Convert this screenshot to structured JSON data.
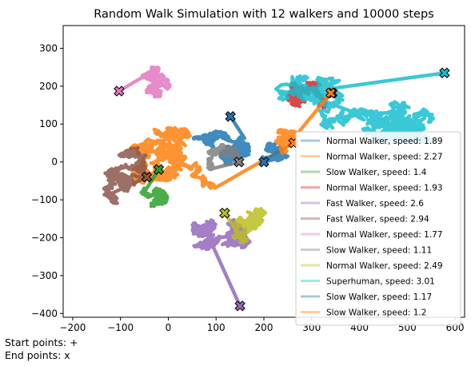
{
  "chart_data": {
    "type": "line",
    "title": "Random Walk Simulation with 12 walkers and 10000 steps",
    "xlabel": "",
    "ylabel": "",
    "xlim": [
      -220,
      620
    ],
    "ylim": [
      -410,
      360
    ],
    "xticks": [
      -200,
      -100,
      0,
      100,
      200,
      300,
      400,
      500,
      600
    ],
    "yticks": [
      -400,
      -300,
      -200,
      -100,
      0,
      100,
      200,
      300
    ],
    "grid": false,
    "legend_position": "center-right",
    "series": [
      {
        "name": "Normal Walker, speed: 1.89",
        "color": "#1f77b4",
        "region": {
          "cx": 60,
          "cy": 60,
          "rx": 110,
          "ry": 90
        },
        "end": [
          130,
          120
        ]
      },
      {
        "name": "Normal Walker, speed: 2.27",
        "color": "#ff7f0e",
        "region": {
          "cx": 20,
          "cy": -20,
          "rx": 200,
          "ry": 110
        },
        "end": [
          262,
          50
        ]
      },
      {
        "name": "Slow Walker, speed: 1.4",
        "color": "#2ca02c",
        "region": {
          "cx": -10,
          "cy": -80,
          "rx": 60,
          "ry": 60
        },
        "end": [
          -20,
          -20
        ]
      },
      {
        "name": "Normal Walker, speed: 1.93",
        "color": "#d62728",
        "region": {
          "cx": 260,
          "cy": 150,
          "rx": 100,
          "ry": 60
        },
        "end": [
          343,
          182
        ]
      },
      {
        "name": "Fast Walker, speed: 2.6",
        "color": "#9467bd",
        "region": {
          "cx": 160,
          "cy": -200,
          "rx": 110,
          "ry": 150
        },
        "end": [
          150,
          -380
        ]
      },
      {
        "name": "Fast Walker, speed: 2.94",
        "color": "#8c564b",
        "region": {
          "cx": -80,
          "cy": -50,
          "rx": 130,
          "ry": 90
        },
        "end": [
          -45,
          -40
        ]
      },
      {
        "name": "Normal Walker, speed: 1.77",
        "color": "#e377c2",
        "region": {
          "cx": -40,
          "cy": 190,
          "rx": 90,
          "ry": 60
        },
        "end": [
          -103,
          187
        ]
      },
      {
        "name": "Slow Walker, speed: 1.11",
        "color": "#7f7f7f",
        "region": {
          "cx": 140,
          "cy": 30,
          "rx": 60,
          "ry": 50
        },
        "end": [
          148,
          0
        ]
      },
      {
        "name": "Normal Walker, speed: 2.49",
        "color": "#bcbd22",
        "region": {
          "cx": 170,
          "cy": -130,
          "rx": 60,
          "ry": 90
        },
        "end": [
          118,
          -135
        ]
      },
      {
        "name": "Superhuman, speed: 3.01",
        "color": "#17becf",
        "region": {
          "cx": 280,
          "cy": 180,
          "rx": 280,
          "ry": 130
        },
        "end": [
          578,
          235
        ]
      },
      {
        "name": "Slow Walker, speed: 1.17",
        "color": "#1f77b4",
        "region": {
          "cx": 200,
          "cy": 10,
          "rx": 50,
          "ry": 40
        },
        "end": [
          200,
          0
        ]
      },
      {
        "name": "Slow Walker, speed: 1.2",
        "color": "#ff7f0e",
        "region": {
          "cx": 230,
          "cy": 60,
          "rx": 60,
          "ry": 50
        },
        "end": [
          340,
          182
        ]
      }
    ]
  },
  "notes": {
    "start_label": "Start points: +",
    "end_label": "End points: x"
  }
}
